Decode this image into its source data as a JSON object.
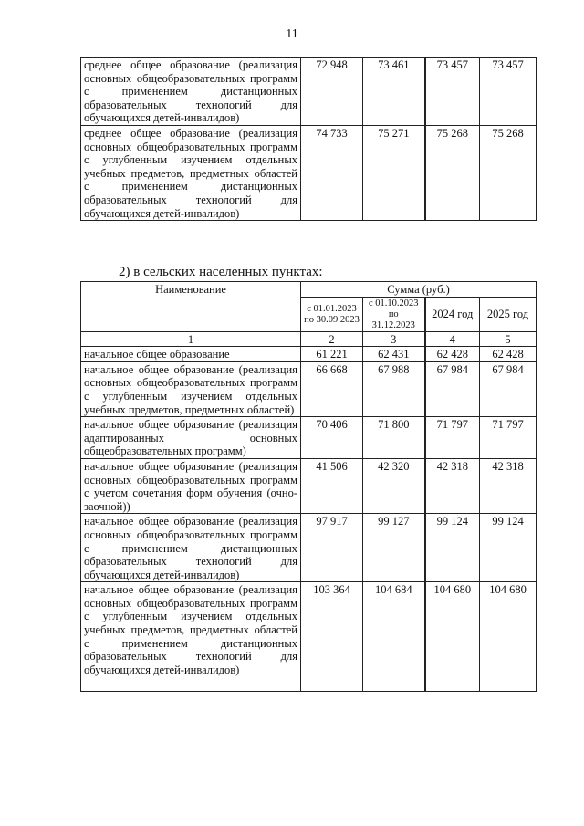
{
  "page_number": "11",
  "table_top": {
    "rows": [
      {
        "name": "среднее общее образование (реализация основных общеобразовательных программ с применением дистанционных образовательных технологий для обучающихся детей-инвалидов)",
        "values": [
          "72 948",
          "73 461",
          "73 457",
          "73 457"
        ]
      },
      {
        "name": "среднее общее образование (реализация основных общеобразовательных программ с углубленным изучением отдельных учебных предметов, предметных областей с применением дистанционных образовательных технологий для обучающихся детей-инвалидов)",
        "values": [
          "74 733",
          "75 271",
          "75 268",
          "75 268"
        ]
      }
    ]
  },
  "section_heading": "2) в сельских населенных пунктах:",
  "table_rural": {
    "header_name": "Наименование",
    "header_sum": "Сумма (руб.)",
    "period_headers": [
      "с 01.01.2023 по 30.09.2023",
      "с 01.10.2023 по 31.12.2023",
      "2024 год",
      "2025 год"
    ],
    "column_numbers": [
      "1",
      "2",
      "3",
      "4",
      "5"
    ],
    "rows": [
      {
        "name": "начальное общее образование",
        "values": [
          "61 221",
          "62 431",
          "62 428",
          "62 428"
        ]
      },
      {
        "name": "начальное общее образование (реализация основных общеобразовательных программ с углубленным изучением отдельных учебных предметов, предметных областей)",
        "values": [
          "66 668",
          "67 988",
          "67 984",
          "67 984"
        ]
      },
      {
        "name": "начальное общее образование (реализация адаптированных основных общеобразовательных программ)",
        "values": [
          "70 406",
          "71 800",
          "71 797",
          "71 797"
        ]
      },
      {
        "name": "начальное общее образование (реализация основных общеобразовательных программ с учетом сочетания форм обучения (очно-заочной))",
        "values": [
          "41 506",
          "42 320",
          "42 318",
          "42 318"
        ]
      },
      {
        "name": "начальное общее образование (реализация основных общеобразовательных программ с применением дистанционных образовательных технологий для обучающихся детей-инвалидов)",
        "values": [
          "97 917",
          "99 127",
          "99 124",
          "99 124"
        ]
      },
      {
        "name": "начальное общее образование (реализация основных общеобразовательных программ с углубленным изучением отдельных учебных предметов, предметных областей с применением дистанционных образовательных технологий для обучающихся детей-инвалидов)",
        "values": [
          "103 364",
          "104 684",
          "104 680",
          "104 680"
        ]
      }
    ]
  }
}
